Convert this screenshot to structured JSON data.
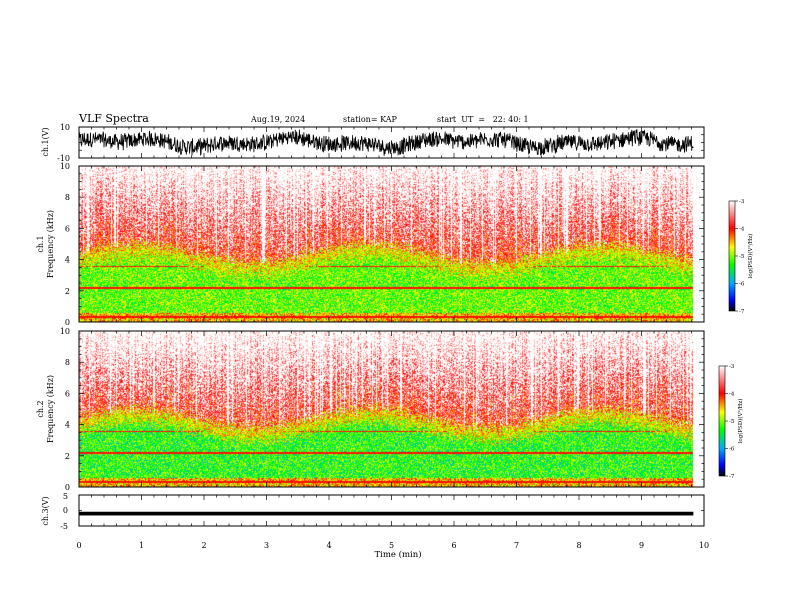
{
  "header": {
    "title": "VLF Spectra",
    "date": "Aug.19, 2024",
    "station": "station= KAP",
    "start_ut": "start  UT  =   22: 40: 1"
  },
  "chart_data": [
    {
      "type": "line",
      "panel": "ch1-waveform",
      "ylabel": "ch.1(V)",
      "ylim": [
        -10,
        10
      ],
      "yticks": [
        "10",
        "-10"
      ],
      "xlim": [
        0,
        10
      ],
      "color": "#000000"
    },
    {
      "type": "heatmap",
      "panel": "ch1-spectrogram",
      "ylabel_line1": "ch.1",
      "ylabel_line2": "Frequency (kHz)",
      "ylim": [
        0,
        10
      ],
      "yticks": [
        "0",
        "2",
        "4",
        "6",
        "8",
        "10"
      ],
      "xlim": [
        0,
        10
      ],
      "data_end_min": 9.83,
      "colorbar": {
        "label": "log(PSD)(V²/Hz)",
        "range": [
          -7,
          -3
        ],
        "ticks": [
          "-3",
          "-4",
          "-5",
          "-6",
          "-7"
        ],
        "colors": [
          "#000000",
          "#0000ff",
          "#00aaff",
          "#00ff00",
          "#ffff00",
          "#ff0000",
          "#ffffff"
        ]
      }
    },
    {
      "type": "heatmap",
      "panel": "ch2-spectrogram",
      "ylabel_line1": "ch.2",
      "ylabel_line2": "Frequency (kHz)",
      "ylim": [
        0,
        10
      ],
      "yticks": [
        "0",
        "2",
        "4",
        "6",
        "8",
        "10"
      ],
      "xlim": [
        0,
        10
      ],
      "data_end_min": 9.83,
      "colorbar": {
        "label": "log(PSD)(V²/Hz)",
        "range": [
          -7,
          -3
        ],
        "ticks": [
          "-3",
          "-4",
          "-5",
          "-6",
          "-7"
        ],
        "colors": [
          "#000000",
          "#0000ff",
          "#00aaff",
          "#00ff00",
          "#ffff00",
          "#ff0000",
          "#ffffff"
        ]
      }
    },
    {
      "type": "line",
      "panel": "ch3-waveform",
      "ylabel": "ch.3(V)",
      "ylim": [
        -5,
        5
      ],
      "yticks": [
        "5",
        "0",
        "-5"
      ],
      "xlim": [
        0,
        10
      ],
      "level_v": -1,
      "color": "#000000"
    }
  ],
  "x_axis": {
    "label": "Time (min)",
    "ticks": [
      "0",
      "1",
      "2",
      "3",
      "4",
      "5",
      "6",
      "7",
      "8",
      "9",
      "10"
    ]
  }
}
